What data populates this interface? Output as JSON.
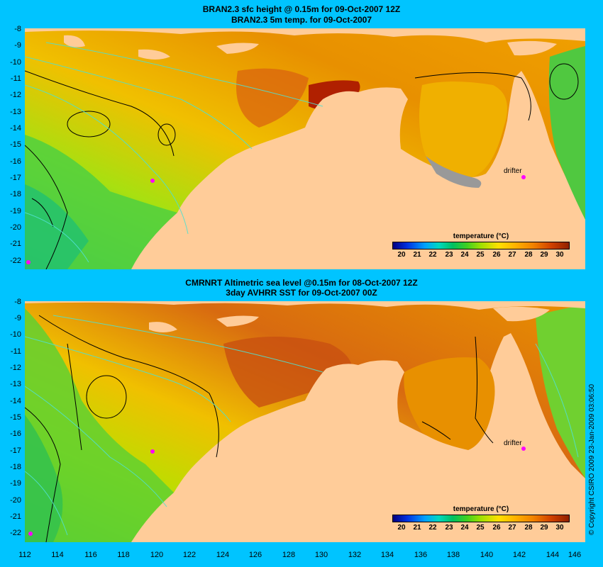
{
  "panel1": {
    "title_line1": "BRAN2.3 sfc height @ 0.15m for 09-Oct-2007 12Z",
    "title_line2": "BRAN2.3 5m temp. for 09-Oct-2007",
    "drifter_label": "drifter"
  },
  "panel2": {
    "title_line1": "CMRNRT Altimetric sea level  @0.15m  for 08-Oct-2007 12Z",
    "title_line2": "3day AVHRR SST for 09-Oct-2007 00Z",
    "drifter_label": "drifter"
  },
  "colorbar": {
    "title": "temperature (°C)",
    "ticks": [
      "20",
      "21",
      "22",
      "23",
      "24",
      "25",
      "26",
      "27",
      "28",
      "29",
      "30"
    ]
  },
  "y_ticks": [
    "-8",
    "-9",
    "-10",
    "-11",
    "-12",
    "-13",
    "-14",
    "-15",
    "-16",
    "-17",
    "-18",
    "-19",
    "-20",
    "-21",
    "-22"
  ],
  "x_ticks": [
    "112",
    "114",
    "116",
    "118",
    "120",
    "122",
    "124",
    "126",
    "128",
    "130",
    "132",
    "134",
    "136",
    "138",
    "140",
    "142",
    "144",
    "146"
  ],
  "copyright": "© Copyright CSIRO 2009  23-Jan-2009 03:06:50",
  "colors": {
    "background": "#00c4ff",
    "land": "#ffcc99",
    "drifter": "#ff00ff"
  }
}
